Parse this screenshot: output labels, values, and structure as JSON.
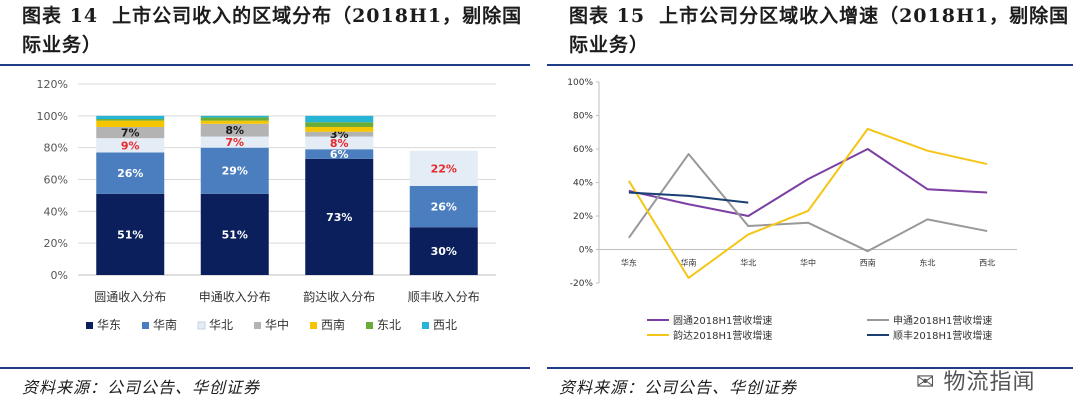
{
  "left": {
    "title_num": "图表 14",
    "title": "上市公司收入的区域分布（2018H1，剔除国际业务）",
    "source": "资料来源：公司公告、华创证券"
  },
  "right": {
    "title_num": "图表 15",
    "title": "上市公司分区域收入增速（2018H1，剔除国际业务）",
    "source": "资料来源：公司公告、华创证券"
  },
  "watermark": "物流指闻",
  "colors": {
    "rule": "#1f3c86",
    "华东": "#0b1f5c",
    "华南": "#4a7ebf",
    "华北": "#e4ecf6",
    "华中": "#b3b3b3",
    "西南": "#f5c500",
    "东北": "#6aac3a",
    "西北": "#27b4d6",
    "label_red": "#e8282a",
    "圆通": "#7b3fa3",
    "申通": "#999999",
    "韵达": "#f5c518",
    "顺丰": "#1a3f73"
  },
  "chart_data": [
    {
      "type": "bar",
      "stacked": true,
      "categories": [
        "圆通收入分布",
        "申通收入分布",
        "韵达收入分布",
        "顺丰收入分布"
      ],
      "ylim": [
        0,
        120
      ],
      "yticks": [
        "0%",
        "20%",
        "40%",
        "60%",
        "80%",
        "100%",
        "120%"
      ],
      "grid": true,
      "legend_position": "bottom",
      "series": [
        {
          "name": "华东",
          "values": [
            51,
            51,
            73,
            30
          ],
          "labels": [
            "51%",
            "51%",
            "73%",
            "30%"
          ],
          "label_color": "#ffffff"
        },
        {
          "name": "华南",
          "values": [
            26,
            29,
            6,
            26
          ],
          "labels": [
            "26%",
            "29%",
            "6%",
            "26%"
          ],
          "label_color": "#ffffff"
        },
        {
          "name": "华北",
          "values": [
            9,
            7,
            8,
            22
          ],
          "labels": [
            "9%",
            "7%",
            "8%",
            "22%"
          ],
          "label_color": "#e8282a"
        },
        {
          "name": "华中",
          "values": [
            7,
            8,
            3,
            0
          ],
          "labels": [
            "7%",
            "8%",
            "3%",
            ""
          ],
          "label_color": "#1a1a1a"
        },
        {
          "name": "西南",
          "values": [
            4,
            2,
            3,
            0
          ],
          "labels": [
            "",
            "",
            "",
            ""
          ],
          "label_color": "#1a1a1a"
        },
        {
          "name": "东北",
          "values": [
            1,
            2,
            3,
            0
          ],
          "labels": [
            "",
            "",
            "",
            ""
          ],
          "label_color": "#1a1a1a"
        },
        {
          "name": "西北",
          "values": [
            2,
            1,
            4,
            0
          ],
          "labels": [
            "",
            "",
            "",
            ""
          ],
          "label_color": "#1a1a1a"
        }
      ]
    },
    {
      "type": "line",
      "categories": [
        "华东",
        "华南",
        "华北",
        "华中",
        "西南",
        "东北",
        "西北"
      ],
      "ylim": [
        -20,
        100
      ],
      "yticks": [
        "-20%",
        "0%",
        "20%",
        "40%",
        "60%",
        "80%",
        "100%"
      ],
      "grid": false,
      "legend_position": "bottom",
      "series": [
        {
          "name": "圆通2018H1营收增速",
          "values": [
            35,
            27,
            20,
            42,
            60,
            36,
            34
          ]
        },
        {
          "name": "申通2018H1营收增速",
          "values": [
            7,
            57,
            14,
            16,
            -1,
            18,
            11
          ]
        },
        {
          "name": "韵达2018H1营收增速",
          "values": [
            41,
            -17,
            9,
            23,
            72,
            59,
            51
          ]
        },
        {
          "name": "顺丰2018H1营收增速",
          "values": [
            34,
            32,
            28,
            null,
            null,
            null,
            null
          ]
        }
      ]
    }
  ]
}
